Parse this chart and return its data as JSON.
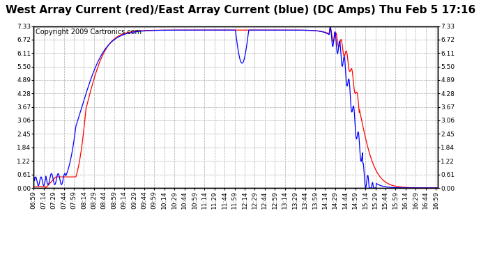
{
  "title": "West Array Current (red)/East Array Current (blue) (DC Amps) Thu Feb 5 17:16",
  "copyright": "Copyright 2009 Cartronics.com",
  "background_color": "#ffffff",
  "plot_bg_color": "#ffffff",
  "grid_color": "#aaaaaa",
  "y_ticks": [
    0.0,
    0.61,
    1.22,
    1.84,
    2.45,
    3.06,
    3.67,
    4.28,
    4.89,
    5.5,
    6.11,
    6.72,
    7.33
  ],
  "y_min": 0.0,
  "y_max": 7.33,
  "red_color": "#ff0000",
  "blue_color": "#0000ff",
  "title_fontsize": 11,
  "copyright_fontsize": 7,
  "tick_fontsize": 6.5
}
